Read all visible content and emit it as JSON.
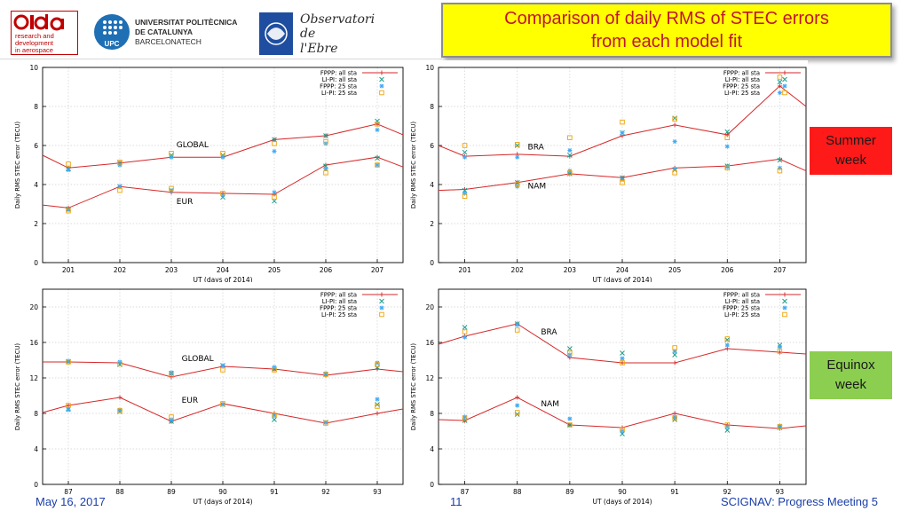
{
  "header": {
    "title_line1": "Comparison of daily RMS of STEC errors",
    "title_line2": "from each model fit",
    "logos": {
      "rda": [
        "research and",
        "development",
        "in aerospace"
      ],
      "upc": [
        "UNIVERSITAT POLITÈCNICA",
        "DE CATALUNYA",
        "BARCELONATECH"
      ],
      "upc_mark": "UPC",
      "observatori": [
        "Observatori",
        "de",
        "l'Ebre"
      ]
    }
  },
  "tags": {
    "summer": [
      "Summer",
      "week"
    ],
    "equinox": [
      "Equinox",
      "week"
    ]
  },
  "footer": {
    "date": "May 16, 2017",
    "page": "11",
    "project": "SCIGNAV: Progress Meeting 5"
  },
  "colors": {
    "fppp_line": "#d62728",
    "lipi_all": "#1f9e89",
    "fppp_25": "#3fa9f5",
    "lipi_25": "#f0a202"
  },
  "chart_data": [
    {
      "type": "line",
      "ylabel": "Daily RMS STEC error (TECU)",
      "xlabel": "UT (days of 2014)",
      "xlim": [
        200.5,
        207.5
      ],
      "ylim": [
        0,
        10
      ],
      "xticks": [
        "201",
        "202",
        "203",
        "204",
        "205",
        "206",
        "207"
      ],
      "yticks": [
        "0",
        "2",
        "4",
        "6",
        "8",
        "10"
      ],
      "x": [
        201,
        202,
        203,
        204,
        205,
        206,
        207
      ],
      "legend": [
        "FPPP: all sta",
        "LI-PI: all sta",
        "FPPP: 25 sta",
        "LI-PI: 25 sta"
      ],
      "groups": [
        {
          "label": "GLOBAL",
          "label_at": [
            203.1,
            5.9
          ],
          "fppp_all": [
            4.85,
            5.1,
            5.4,
            5.4,
            6.3,
            6.5,
            7.1
          ],
          "edge": [
            5.5,
            6.55
          ],
          "lipi_all": [
            4.8,
            5.1,
            5.5,
            5.5,
            6.3,
            6.5,
            7.25
          ],
          "fppp_25": [
            4.75,
            5.0,
            5.4,
            5.4,
            5.7,
            6.1,
            6.8
          ],
          "lipi_25": [
            5.05,
            5.15,
            5.6,
            5.6,
            6.1,
            6.2,
            7.1
          ]
        },
        {
          "label": "EUR",
          "label_at": [
            203.1,
            3.0
          ],
          "fppp_all": [
            2.8,
            3.9,
            3.6,
            3.55,
            3.5,
            5.0,
            5.4
          ],
          "edge": [
            2.95,
            4.9
          ],
          "lipi_all": [
            2.75,
            3.9,
            3.7,
            3.35,
            3.15,
            4.95,
            5.35
          ],
          "fppp_25": [
            2.7,
            3.9,
            3.7,
            3.45,
            3.6,
            4.8,
            5.0
          ],
          "lipi_25": [
            2.65,
            3.7,
            3.8,
            3.55,
            3.35,
            4.6,
            5.0
          ]
        }
      ]
    },
    {
      "type": "line",
      "ylabel": "Daily RMS STEC error (TECU)",
      "xlabel": "UT (days of 2014)",
      "xlim": [
        200.5,
        207.5
      ],
      "ylim": [
        0,
        10
      ],
      "xticks": [
        "201",
        "202",
        "203",
        "204",
        "205",
        "206",
        "207"
      ],
      "yticks": [
        "0",
        "2",
        "4",
        "6",
        "8",
        "10"
      ],
      "x": [
        201,
        202,
        203,
        204,
        205,
        206,
        207
      ],
      "legend": [
        "FPPP: all sta",
        "LI-PI: all sta",
        "FPPP: 25 sta",
        "LI-PI: 25 sta"
      ],
      "groups": [
        {
          "label": "BRA",
          "label_at": [
            202.2,
            5.8
          ],
          "fppp_all": [
            5.45,
            5.55,
            5.45,
            6.5,
            7.05,
            6.55,
            9.05
          ],
          "edge": [
            6.0,
            8.0
          ],
          "lipi_all": [
            5.65,
            6.0,
            5.5,
            6.65,
            7.4,
            6.7,
            9.25
          ],
          "fppp_25": [
            5.4,
            5.4,
            5.75,
            6.65,
            6.2,
            5.95,
            8.7
          ],
          "lipi_25": [
            6.0,
            6.05,
            6.4,
            7.2,
            7.35,
            6.4,
            9.5
          ]
        },
        {
          "label": "NAM",
          "label_at": [
            202.2,
            3.8
          ],
          "fppp_all": [
            3.75,
            4.1,
            4.55,
            4.35,
            4.85,
            4.95,
            5.3
          ],
          "edge": [
            3.7,
            4.7
          ],
          "lipi_all": [
            3.7,
            4.1,
            4.55,
            4.35,
            4.75,
            4.95,
            5.25
          ],
          "fppp_25": [
            3.55,
            3.9,
            4.7,
            4.25,
            4.8,
            4.9,
            4.85
          ],
          "lipi_25": [
            3.4,
            4.0,
            4.6,
            4.1,
            4.6,
            4.85,
            4.7
          ]
        }
      ]
    },
    {
      "type": "line",
      "ylabel": "Daily RMS STEC error (TECU)",
      "xlabel": "UT (days of 2014)",
      "xlim": [
        86.5,
        93.5
      ],
      "ylim": [
        0,
        22
      ],
      "xticks": [
        "87",
        "88",
        "89",
        "90",
        "91",
        "92",
        "93"
      ],
      "yticks": [
        "0",
        "4",
        "8",
        "12",
        "16",
        "20"
      ],
      "x": [
        87,
        88,
        89,
        90,
        91,
        92,
        93
      ],
      "legend": [
        "FPPP: all sta",
        "LI-PI: all sta",
        "FPPP: 25 sta",
        "LI-PI: 25 sta"
      ],
      "groups": [
        {
          "label": "GLOBAL",
          "label_at": [
            89.2,
            13.9
          ],
          "fppp_all": [
            13.8,
            13.7,
            12.1,
            13.3,
            13.0,
            12.3,
            13.0
          ],
          "edge": [
            13.8,
            12.7
          ],
          "lipi_all": [
            13.85,
            13.5,
            12.5,
            13.4,
            13.0,
            12.4,
            13.2
          ],
          "fppp_25": [
            13.9,
            13.8,
            12.6,
            13.4,
            13.2,
            12.5,
            13.7
          ],
          "lipi_25": [
            13.8,
            13.6,
            12.3,
            12.9,
            12.9,
            12.4,
            13.5
          ]
        },
        {
          "label": "EUR",
          "label_at": [
            89.2,
            9.2
          ],
          "fppp_all": [
            8.9,
            9.8,
            7.1,
            9.1,
            8.0,
            6.9,
            8.0
          ],
          "edge": [
            8.1,
            8.5
          ],
          "lipi_all": [
            8.5,
            8.2,
            7.1,
            9.0,
            7.3,
            7.0,
            9.0
          ],
          "fppp_25": [
            8.4,
            8.4,
            7.3,
            9.0,
            7.8,
            7.0,
            9.6
          ],
          "lipi_25": [
            8.9,
            8.3,
            7.6,
            9.1,
            7.8,
            6.9,
            8.8
          ]
        }
      ]
    },
    {
      "type": "line",
      "ylabel": "Daily RMS STEC error (TECU)",
      "xlabel": "UT (days of 2014)",
      "xlim": [
        86.5,
        93.5
      ],
      "ylim": [
        0,
        22
      ],
      "xticks": [
        "87",
        "88",
        "89",
        "90",
        "91",
        "92",
        "93"
      ],
      "yticks": [
        "0",
        "4",
        "8",
        "12",
        "16",
        "20"
      ],
      "x": [
        87,
        88,
        89,
        90,
        91,
        92,
        93
      ],
      "legend": [
        "FPPP: all sta",
        "LI-PI: all sta",
        "FPPP: 25 sta",
        "LI-PI: 25 sta"
      ],
      "groups": [
        {
          "label": "BRA",
          "label_at": [
            88.45,
            16.9
          ],
          "fppp_all": [
            16.7,
            18.1,
            14.3,
            13.7,
            13.7,
            15.3,
            14.9
          ],
          "edge": [
            15.8,
            14.7
          ],
          "lipi_all": [
            17.7,
            18.1,
            15.3,
            14.8,
            14.6,
            16.3,
            15.7
          ],
          "fppp_25": [
            16.6,
            18.0,
            14.6,
            14.2,
            15.0,
            15.7,
            15.5
          ],
          "lipi_25": [
            17.2,
            17.4,
            14.8,
            13.7,
            15.4,
            16.4,
            15.0
          ]
        },
        {
          "label": "NAM",
          "label_at": [
            88.45,
            8.8
          ],
          "fppp_all": [
            7.2,
            9.8,
            6.7,
            6.4,
            8.0,
            6.7,
            6.3
          ],
          "edge": [
            7.3,
            6.6
          ],
          "lipi_all": [
            7.2,
            7.9,
            6.7,
            5.7,
            7.3,
            6.1,
            6.4
          ],
          "fppp_25": [
            7.6,
            8.9,
            7.4,
            6.0,
            7.6,
            6.5,
            6.6
          ],
          "lipi_25": [
            7.5,
            8.1,
            6.7,
            6.2,
            7.5,
            6.7,
            6.5
          ]
        }
      ]
    }
  ]
}
